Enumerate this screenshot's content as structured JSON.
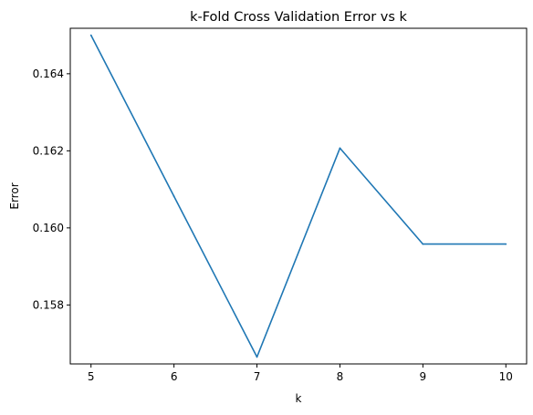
{
  "chart_data": {
    "type": "line",
    "title": "k-Fold Cross Validation Error vs k",
    "xlabel": "k",
    "ylabel": "Error",
    "x": [
      5,
      6,
      7,
      8,
      9,
      10
    ],
    "series": [
      {
        "values": [
          0.165,
          0.16082,
          0.15665,
          0.16207,
          0.15958,
          0.15958
        ]
      }
    ],
    "xticks": [
      5,
      6,
      7,
      8,
      9,
      10
    ],
    "yticks": [
      0.158,
      0.16,
      0.162,
      0.164
    ],
    "ytick_labels": [
      "0.158",
      "0.160",
      "0.162",
      "0.164"
    ],
    "xlim": [
      4.75,
      10.25
    ],
    "ylim": [
      0.15647,
      0.16518
    ],
    "grid": false,
    "line_color": "#1f77b4"
  }
}
